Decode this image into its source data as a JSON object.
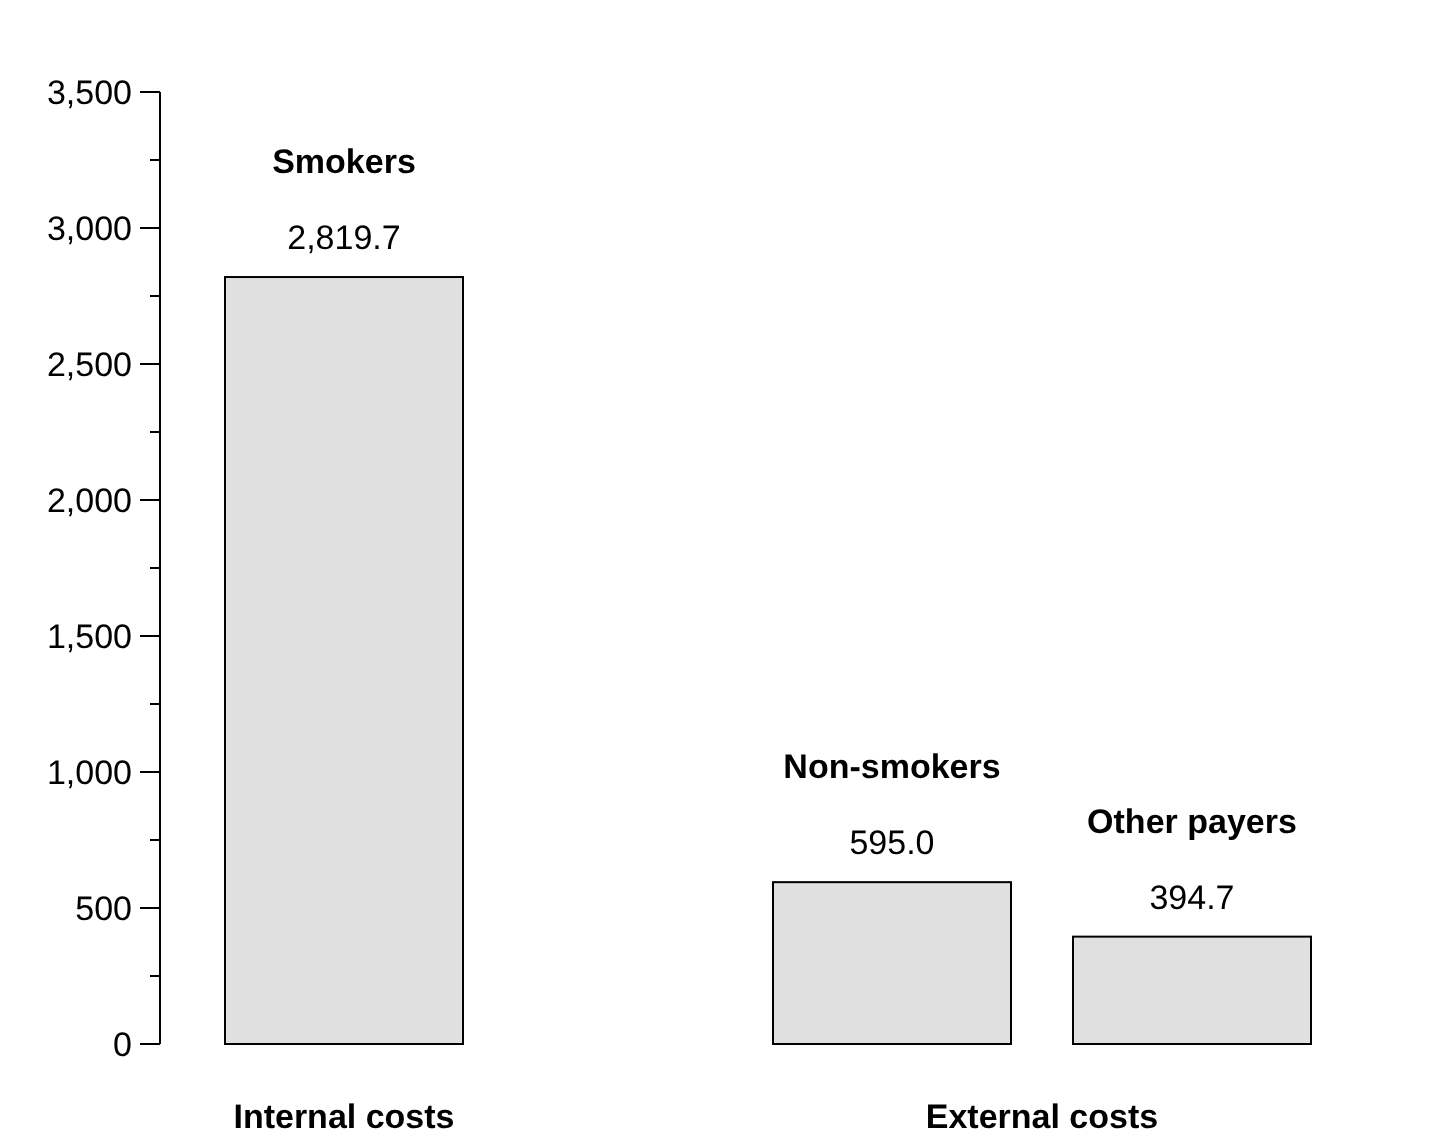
{
  "chart_data": {
    "type": "bar",
    "categories": [
      "Smokers",
      "Non-smokers",
      "Other payers"
    ],
    "values": [
      2819.7,
      595.0,
      394.7
    ],
    "value_labels": [
      "2,819.7",
      "595.0",
      "394.7"
    ],
    "color": "#e0e0e0",
    "ylim": [
      0,
      3500
    ],
    "yticks": [
      0,
      {
        "value": 250,
        "label": null
      },
      {
        "value": 500,
        "label": "500"
      },
      {
        "value": 750,
        "label": null
      },
      {
        "value": 1000,
        "label": "1,000"
      },
      {
        "value": 1250,
        "label": null
      },
      {
        "value": 1500,
        "label": "1,500"
      },
      {
        "value": 1750,
        "label": null
      },
      {
        "value": 2000,
        "label": "2,000"
      },
      {
        "value": 2250,
        "label": null
      },
      {
        "value": 2500,
        "label": "2,500"
      },
      {
        "value": 2750,
        "label": null
      },
      {
        "value": 3000,
        "label": "3,000"
      },
      {
        "value": 3250,
        "label": null
      },
      {
        "value": 3500,
        "label": "3,500"
      }
    ],
    "annotations": [
      "Internal costs",
      "External costs"
    ]
  }
}
